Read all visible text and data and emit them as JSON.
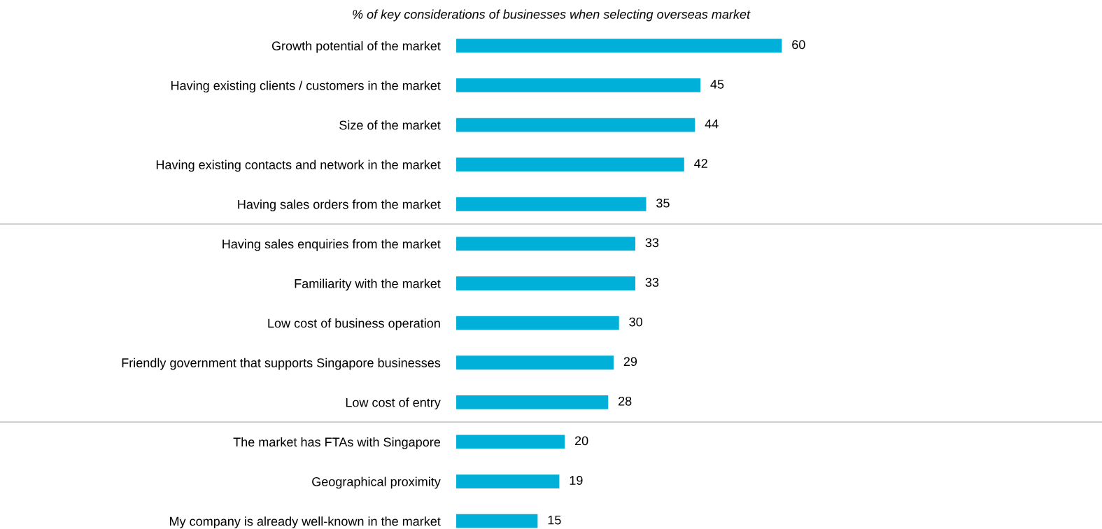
{
  "chart_data": {
    "type": "bar",
    "orientation": "horizontal",
    "title": "% of key considerations of businesses when selecting overseas market",
    "categories": [
      "Growth potential of the market",
      "Having existing clients / customers in the market",
      "Size of the market",
      "Having existing contacts and network in the market",
      "Having sales orders from the market",
      "Having sales enquiries from the market",
      "Familiarity with the market",
      "Low cost of business operation",
      "Friendly government that supports Singapore businesses",
      "Low cost of entry",
      "The market has FTAs with Singapore",
      "Geographical proximity",
      "My company is already well-known in the market"
    ],
    "values": [
      60,
      45,
      44,
      42,
      35,
      33,
      33,
      30,
      29,
      28,
      20,
      19,
      15
    ],
    "color": "#00b0d8",
    "data_labels": true,
    "tick_labels": "y",
    "xlim": [
      0,
      119
    ],
    "grid": false,
    "legend": false
  }
}
